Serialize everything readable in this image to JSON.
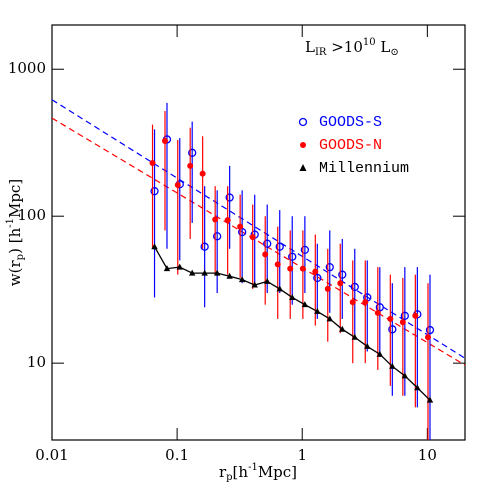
{
  "chart_data": {
    "type": "scatter",
    "annotation": [
      "L",
      "IR",
      " >10",
      "10",
      " L",
      "⊙"
    ],
    "xlabel": [
      "r",
      "p",
      "[h",
      "-1",
      "Mpc]"
    ],
    "ylabel": [
      "w(r",
      "p",
      ") [h",
      "-1",
      "Mpc]"
    ],
    "xscale": "log",
    "yscale": "log",
    "xlim": [
      0.01,
      20
    ],
    "ylim": [
      3,
      2000
    ],
    "xticks": [
      0.01,
      0.1,
      1,
      10
    ],
    "yticks": [
      10,
      100,
      1000
    ],
    "legend": "upper right",
    "x": [
      0.066,
      0.083,
      0.105,
      0.132,
      0.166,
      0.209,
      0.263,
      0.331,
      0.417,
      0.525,
      0.661,
      0.832,
      1.05,
      1.32,
      1.66,
      2.09,
      2.63,
      3.31,
      4.17,
      5.25,
      6.61,
      8.32,
      10.5
    ],
    "series": [
      {
        "name": "GOODS-S",
        "color": "#0000ff",
        "marker": "open-circle",
        "values": [
          148,
          333,
          165,
          270,
          62,
          73,
          134,
          78,
          75,
          65,
          62,
          53,
          59,
          38,
          45,
          40,
          33,
          28,
          24,
          17,
          21,
          21.5,
          16.8
        ],
        "yerr_low": [
          28,
          60,
          50,
          90,
          24,
          30,
          60,
          35,
          35,
          30,
          30,
          25,
          30,
          20,
          22,
          20,
          15,
          12,
          11,
          6,
          6,
          5,
          3
        ],
        "yerr_high": [
          390,
          590,
          340,
          440,
          160,
          150,
          220,
          150,
          140,
          120,
          110,
          100,
          100,
          65,
          80,
          70,
          60,
          50,
          45,
          35,
          45,
          45,
          40
        ]
      },
      {
        "name": "GOODS-N",
        "color": "#ff0000",
        "marker": "filled-circle",
        "values": [
          230,
          325,
          163,
          220,
          195,
          95,
          94,
          85,
          72,
          55,
          47,
          44,
          44,
          42,
          32,
          35,
          26,
          26,
          22,
          20,
          19,
          21,
          15
        ],
        "yerr_low": [
          60,
          80,
          40,
          70,
          60,
          40,
          40,
          38,
          32,
          25,
          20,
          20,
          20,
          18,
          14,
          16,
          10,
          10,
          9,
          7,
          6,
          5,
          3
        ],
        "yerr_high": [
          420,
          520,
          330,
          400,
          350,
          160,
          160,
          140,
          120,
          100,
          85,
          80,
          80,
          75,
          60,
          65,
          50,
          50,
          45,
          40,
          38,
          40,
          35
        ]
      },
      {
        "name": "Millennium",
        "color": "#000000",
        "marker": "triangle-line",
        "values": [
          62,
          44,
          45,
          41,
          41,
          41,
          39,
          37,
          34,
          36,
          32,
          28,
          25,
          22.5,
          20,
          17,
          15,
          13,
          11.5,
          9.5,
          8.2,
          6.8,
          5.6
        ]
      }
    ],
    "fits": [
      {
        "color": "#0000ff",
        "x": [
          0.01,
          20
        ],
        "values": [
          620,
          10.8
        ]
      },
      {
        "color": "#ff0000",
        "x": [
          0.01,
          20
        ],
        "values": [
          465,
          9.7
        ]
      }
    ]
  }
}
